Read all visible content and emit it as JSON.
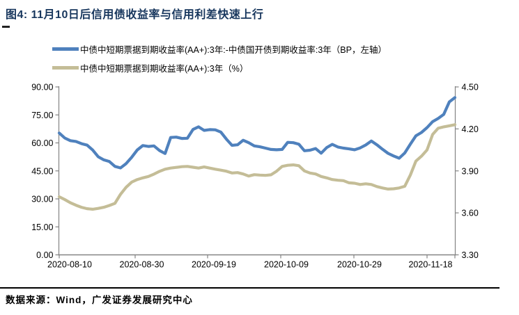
{
  "header": {
    "title": "图4:  11月10日后信用债收益率与信用利差快速上行"
  },
  "legend": {
    "series1": "中债中短期票据到期收益率(AA+):3年:-中债国开债到期收益率:3年（BP，左轴）",
    "series2": "中债中短期票据到期收益率(AA+):3年（%）"
  },
  "footer": {
    "source": "数据来源：Wind，广发证券发展研究中心"
  },
  "colors": {
    "series1": "#4F81BD",
    "series2": "#C4BD97",
    "title": "#17365D",
    "axis": "#848484",
    "tick_text": "#000000",
    "rule": "#000000"
  },
  "chart_data": {
    "type": "line",
    "title": "11月10日后信用债收益率与信用利差快速上行",
    "grid": false,
    "legend_position": "top-left",
    "x_tick_labels": [
      "2020-08-10",
      "2020-08-30",
      "2020-09-19",
      "2020-10-09",
      "2020-10-29",
      "2020-11-18"
    ],
    "left_axis": {
      "side": "left",
      "tick_labels": [
        "90.00",
        "75.00",
        "60.00",
        "45.00",
        "30.00",
        "15.00",
        "0.00"
      ],
      "range": [
        0,
        90
      ],
      "unit": "BP"
    },
    "right_axis": {
      "side": "right",
      "tick_labels": [
        "4.50",
        "4.20",
        "3.90",
        "3.60",
        "3.30"
      ],
      "range": [
        3.3,
        4.5
      ],
      "unit": "%"
    },
    "series": [
      {
        "name": "中债中短期票据到期收益率(AA+):3年:-中债国开债到期收益率:3年（BP，左轴）",
        "axis": "left",
        "color": "#4F81BD",
        "values": [
          65.3,
          62.6,
          61.2,
          60.8,
          59.6,
          58.8,
          56.2,
          52.6,
          50.9,
          50.0,
          47.4,
          46.6,
          48.9,
          52.3,
          56.2,
          58.6,
          58.1,
          58.4,
          55.9,
          54.3,
          62.9,
          63.1,
          62.4,
          62.5,
          67.2,
          68.6,
          66.7,
          67.1,
          67.0,
          65.8,
          62.0,
          58.7,
          59.0,
          61.4,
          60.1,
          58.4,
          57.9,
          57.2,
          56.5,
          56.3,
          56.5,
          60.3,
          60.1,
          59.3,
          55.8,
          56.1,
          57.0,
          54.5,
          57.5,
          59.2,
          57.8,
          57.2,
          56.8,
          56.3,
          57.3,
          58.9,
          61.0,
          59.0,
          56.6,
          54.4,
          53.0,
          51.8,
          54.6,
          59.3,
          63.8,
          65.6,
          68.2,
          71.4,
          73.1,
          75.3,
          82.0,
          84.3
        ]
      },
      {
        "name": "中债中短期票据到期收益率(AA+):3年（%）",
        "axis": "right",
        "color": "#C4BD97",
        "values": [
          3.715,
          3.695,
          3.672,
          3.655,
          3.64,
          3.63,
          3.626,
          3.632,
          3.64,
          3.653,
          3.668,
          3.733,
          3.783,
          3.82,
          3.838,
          3.85,
          3.86,
          3.877,
          3.897,
          3.912,
          3.92,
          3.925,
          3.93,
          3.932,
          3.926,
          3.92,
          3.928,
          3.92,
          3.912,
          3.905,
          3.898,
          3.885,
          3.888,
          3.878,
          3.863,
          3.873,
          3.87,
          3.868,
          3.872,
          3.898,
          3.932,
          3.94,
          3.943,
          3.937,
          3.9,
          3.885,
          3.878,
          3.86,
          3.85,
          3.838,
          3.833,
          3.83,
          3.815,
          3.812,
          3.803,
          3.808,
          3.803,
          3.788,
          3.778,
          3.77,
          3.772,
          3.778,
          3.79,
          3.87,
          3.97,
          4.005,
          4.05,
          4.16,
          4.205,
          4.215,
          4.222,
          4.23
        ]
      }
    ]
  }
}
